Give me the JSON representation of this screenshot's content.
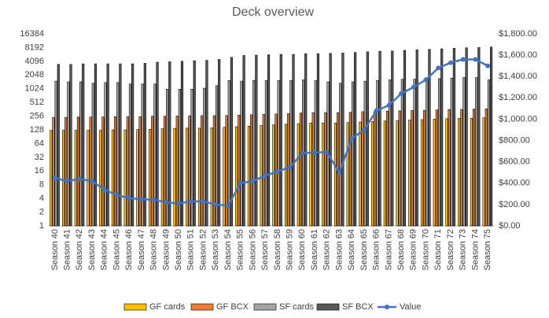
{
  "chart_data": {
    "type": "bar",
    "title": "Deck overview",
    "categories": [
      "Season 40",
      "Season 41",
      "Season 42",
      "Season 43",
      "Season 44",
      "Season 45",
      "Season 46",
      "Season 47",
      "Season 48",
      "Season 49",
      "Season 50",
      "Season 51",
      "Season 52",
      "Season 53",
      "Season 54",
      "Season 55",
      "Season 56",
      "Season 57",
      "Season 58",
      "Season 59",
      "Season 60",
      "Season 61",
      "Season 62",
      "Season 63",
      "Season 64",
      "Season 65",
      "Season 66",
      "Season 67",
      "Season 68",
      "Season 69",
      "Season 70",
      "Season 71",
      "Season 72",
      "Season 73",
      "Season 74",
      "Season 75"
    ],
    "ylog": true,
    "ylim": [
      1,
      16384
    ],
    "yticks": [
      1,
      2,
      4,
      8,
      16,
      32,
      64,
      128,
      256,
      512,
      1024,
      2048,
      4096,
      8192,
      16384
    ],
    "y2lim": [
      0,
      1800
    ],
    "y2ticks": [
      {
        "value": 0,
        "label": "$0.00"
      },
      {
        "value": 200,
        "label": "$200.00"
      },
      {
        "value": 400,
        "label": "$400.00"
      },
      {
        "value": 600,
        "label": "$600.00"
      },
      {
        "value": 800,
        "label": "$800.00"
      },
      {
        "value": 1000,
        "label": "$1,000.00"
      },
      {
        "value": 1200,
        "label": "$1,200.00"
      },
      {
        "value": 1400,
        "label": "$1,400.00"
      },
      {
        "value": 1600,
        "label": "$1,600.00"
      },
      {
        "value": 1800,
        "label": "$1,800.00"
      }
    ],
    "grid": false,
    "legend": "bottom",
    "series": [
      {
        "name": "GF cards",
        "color": "#ffc000",
        "values": [
          125,
          125,
          125,
          125,
          125,
          128,
          128,
          130,
          132,
          135,
          138,
          140,
          140,
          142,
          145,
          150,
          155,
          160,
          165,
          170,
          175,
          180,
          180,
          180,
          185,
          190,
          195,
          200,
          205,
          210,
          215,
          220,
          225,
          228,
          230,
          235
        ]
      },
      {
        "name": "GF BCX",
        "color": "#ed7d31",
        "values": [
          240,
          240,
          245,
          245,
          245,
          250,
          250,
          250,
          255,
          255,
          258,
          260,
          262,
          262,
          265,
          270,
          275,
          280,
          285,
          290,
          300,
          305,
          305,
          305,
          310,
          320,
          325,
          330,
          335,
          340,
          345,
          350,
          355,
          360,
          365,
          370
        ]
      },
      {
        "name": "SF cards",
        "color": "#a5a5a5",
        "values": [
          1500,
          1450,
          1450,
          1350,
          1400,
          1400,
          1300,
          1300,
          1300,
          1000,
          1000,
          1000,
          1050,
          1200,
          1550,
          1500,
          1550,
          1550,
          1550,
          1550,
          1600,
          1550,
          1450,
          1350,
          1450,
          1500,
          1550,
          1600,
          1650,
          1650,
          1650,
          1700,
          1750,
          1800,
          1800,
          1600
        ]
      },
      {
        "name": "SF BCX",
        "color": "#595959",
        "values": [
          3500,
          3500,
          3600,
          3600,
          3600,
          3600,
          3600,
          3700,
          3900,
          4000,
          4100,
          4200,
          4300,
          4500,
          5000,
          5500,
          5600,
          5700,
          5800,
          5800,
          6000,
          6000,
          6100,
          6200,
          6400,
          6600,
          6800,
          6900,
          7100,
          7300,
          7500,
          7700,
          7900,
          8100,
          8200,
          8400
        ]
      },
      {
        "name": "Value",
        "color": "#4472c4",
        "type": "line",
        "axis": "y2",
        "values": [
          450,
          420,
          440,
          420,
          340,
          290,
          260,
          250,
          245,
          220,
          210,
          230,
          230,
          200,
          190,
          400,
          420,
          470,
          510,
          550,
          680,
          690,
          690,
          500,
          820,
          900,
          1080,
          1130,
          1240,
          1300,
          1370,
          1480,
          1530,
          1560,
          1560,
          1500
        ]
      }
    ]
  }
}
